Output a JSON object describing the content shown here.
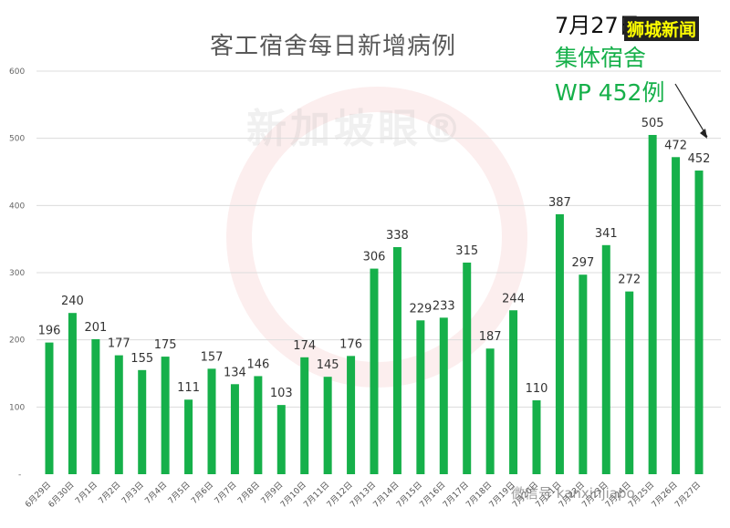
{
  "chart_data": {
    "type": "bar",
    "title": "客工宿舍每日新增病例",
    "categories": [
      "6月29日",
      "6月30日",
      "7月1日",
      "7月2日",
      "7月3日",
      "7月4日",
      "7月5日",
      "7月6日",
      "7月7日",
      "7月8日",
      "7月9日",
      "7月10日",
      "7月11日",
      "7月12日",
      "7月13日",
      "7月14日",
      "7月15日",
      "7月16日",
      "7月17日",
      "7月18日",
      "7月19日",
      "7月20日",
      "7月21日",
      "7月22日",
      "7月23日",
      "7月24日",
      "7月25日",
      "7月26日",
      "7月27日"
    ],
    "values": [
      196,
      240,
      201,
      177,
      155,
      175,
      111,
      157,
      134,
      146,
      103,
      174,
      145,
      176,
      306,
      338,
      229,
      233,
      315,
      187,
      244,
      110,
      387,
      297,
      341,
      272,
      505,
      472,
      452
    ],
    "ylim": [
      0,
      600
    ],
    "yticks": [
      100,
      200,
      300,
      400,
      500,
      600
    ],
    "y_zero_label": "-",
    "grid": true,
    "bar_color": "#16b04a"
  },
  "annotation": {
    "date": "7月27日",
    "brand": "狮城新闻",
    "line1": "集体宿舍",
    "line2": "WP 452例"
  },
  "watermark": {
    "text": "新加坡眼®",
    "wechat": "微信号 kanxinjiapo"
  }
}
